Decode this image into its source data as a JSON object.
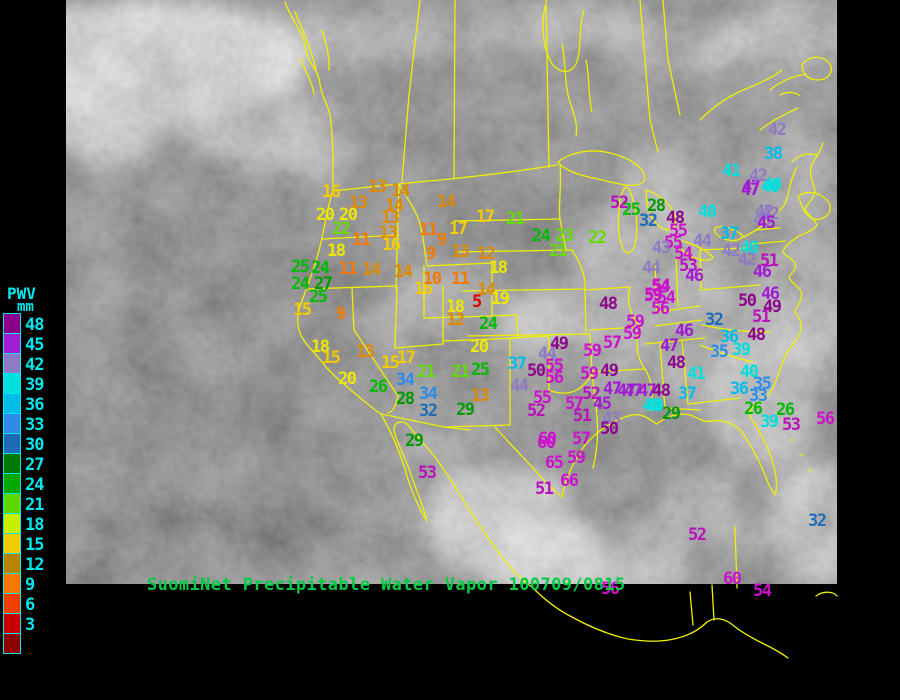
{
  "title": {
    "text": "SuomiNet Precipitable Water Vapor 100709/0815",
    "color": "#00CC44"
  },
  "legend": {
    "title": "PWV",
    "unit": "mm",
    "label_color": "#00E8ED",
    "ticks": [
      48,
      45,
      42,
      39,
      36,
      33,
      30,
      27,
      24,
      21,
      18,
      15,
      12,
      9,
      6,
      3
    ],
    "swatch_colors": [
      "#8B008B",
      "#A21CD5",
      "#8F7BC5",
      "#00E0E0",
      "#00BCE8",
      "#2E8BE8",
      "#1E6CB8",
      "#007A00",
      "#00A800",
      "#5FD800",
      "#C8EE00",
      "#F0CC00",
      "#B88400",
      "#F57800",
      "#F04000",
      "#C80000",
      "#8B0000"
    ]
  },
  "colors": {
    "border_yellow": "#F0F000",
    "background": "#000000",
    "ocean_gray": "#6E6E6E"
  },
  "value_colors": [
    {
      "min": 54,
      "color": "#CD12CD"
    },
    {
      "min": 51,
      "color": "#BB10BB"
    },
    {
      "min": 48,
      "color": "#8E068E"
    },
    {
      "min": 45,
      "color": "#A21CD5"
    },
    {
      "min": 42,
      "color": "#8F7BC5"
    },
    {
      "min": 39,
      "color": "#00DFDF"
    },
    {
      "min": 36,
      "color": "#00BCE8"
    },
    {
      "min": 33,
      "color": "#2E8BE8"
    },
    {
      "min": 30,
      "color": "#1E6CB8"
    },
    {
      "min": 27,
      "color": "#009900"
    },
    {
      "min": 24,
      "color": "#00BB00"
    },
    {
      "min": 21,
      "color": "#62DC00"
    },
    {
      "min": 18,
      "color": "#EDE800"
    },
    {
      "min": 15,
      "color": "#F2CC00"
    },
    {
      "min": 12,
      "color": "#DD8A00"
    },
    {
      "min": 9,
      "color": "#F57800"
    },
    {
      "min": 6,
      "color": "#F04000"
    },
    {
      "min": 0,
      "color": "#E00000"
    }
  ],
  "stations": [
    [
      16,
      322,
      185
    ],
    [
      13,
      368,
      180
    ],
    [
      14,
      391,
      184
    ],
    [
      13,
      349,
      196
    ],
    [
      14,
      385,
      199
    ],
    [
      13,
      381,
      211
    ],
    [
      20,
      316,
      208
    ],
    [
      20,
      339,
      208
    ],
    [
      22,
      332,
      222
    ],
    [
      18,
      327,
      244
    ],
    [
      11,
      352,
      233
    ],
    [
      13,
      379,
      226
    ],
    [
      16,
      382,
      238
    ],
    [
      25,
      291,
      260
    ],
    [
      24,
      311,
      261
    ],
    [
      11,
      339,
      262
    ],
    [
      14,
      362,
      263
    ],
    [
      14,
      394,
      265
    ],
    [
      24,
      291,
      277
    ],
    [
      27,
      314,
      277
    ],
    [
      25,
      309,
      290
    ],
    [
      15,
      293,
      303
    ],
    [
      9,
      336,
      307
    ],
    [
      18,
      311,
      340
    ],
    [
      15,
      322,
      351
    ],
    [
      13,
      356,
      345
    ],
    [
      20,
      338,
      372
    ],
    [
      15,
      381,
      356
    ],
    [
      17,
      397,
      351
    ],
    [
      26,
      369,
      380
    ],
    [
      34,
      396,
      373
    ],
    [
      21,
      417,
      365
    ],
    [
      28,
      396,
      392
    ],
    [
      34,
      419,
      387
    ],
    [
      32,
      419,
      404
    ],
    [
      21,
      451,
      365
    ],
    [
      25,
      471,
      363
    ],
    [
      13,
      471,
      389
    ],
    [
      29,
      456,
      403
    ],
    [
      20,
      470,
      340
    ],
    [
      14,
      437,
      195
    ],
    [
      17,
      476,
      210
    ],
    [
      21,
      506,
      212
    ],
    [
      11,
      419,
      223
    ],
    [
      17,
      449,
      222
    ],
    [
      9,
      437,
      233
    ],
    [
      9,
      426,
      247
    ],
    [
      13,
      451,
      245
    ],
    [
      12,
      477,
      247
    ],
    [
      18,
      489,
      261
    ],
    [
      16,
      414,
      282
    ],
    [
      10,
      423,
      272
    ],
    [
      11,
      451,
      272
    ],
    [
      14,
      477,
      283
    ],
    [
      5,
      472,
      295
    ],
    [
      19,
      491,
      292
    ],
    [
      18,
      446,
      300
    ],
    [
      12,
      446,
      313
    ],
    [
      24,
      479,
      317
    ],
    [
      24,
      532,
      229
    ],
    [
      23,
      555,
      229
    ],
    [
      22,
      588,
      231
    ],
    [
      21,
      549,
      244
    ],
    [
      37,
      508,
      357
    ],
    [
      44,
      538,
      347
    ],
    [
      50,
      527,
      364
    ],
    [
      55,
      545,
      359
    ],
    [
      56,
      545,
      371
    ],
    [
      49,
      550,
      337
    ],
    [
      44,
      510,
      379
    ],
    [
      59,
      583,
      344
    ],
    [
      59,
      580,
      367
    ],
    [
      49,
      600,
      364
    ],
    [
      57,
      603,
      336
    ],
    [
      55,
      533,
      391
    ],
    [
      52,
      527,
      404
    ],
    [
      52,
      582,
      387
    ],
    [
      57,
      565,
      397
    ],
    [
      51,
      573,
      409
    ],
    [
      47,
      603,
      382
    ],
    [
      45,
      593,
      397
    ],
    [
      47,
      617,
      384
    ],
    [
      47,
      638,
      384
    ],
    [
      48,
      652,
      384
    ],
    [
      43,
      602,
      412
    ],
    [
      50,
      600,
      422
    ],
    [
      40,
      642,
      399
    ],
    [
      48,
      667,
      356
    ],
    [
      47,
      660,
      339
    ],
    [
      60,
      538,
      432
    ],
    [
      57,
      572,
      432
    ],
    [
      59,
      567,
      451
    ],
    [
      65,
      545,
      456
    ],
    [
      66,
      560,
      474
    ],
    [
      51,
      535,
      482
    ],
    [
      25,
      622,
      203
    ],
    [
      28,
      647,
      199
    ],
    [
      52,
      610,
      196
    ],
    [
      32,
      639,
      214
    ],
    [
      48,
      666,
      211
    ],
    [
      55,
      669,
      224
    ],
    [
      55,
      664,
      236
    ],
    [
      43,
      652,
      241
    ],
    [
      54,
      674,
      247
    ],
    [
      53,
      679,
      259
    ],
    [
      46,
      685,
      269
    ],
    [
      44,
      642,
      261
    ],
    [
      54,
      652,
      279
    ],
    [
      59,
      644,
      289
    ],
    [
      56,
      651,
      302
    ],
    [
      48,
      599,
      297
    ],
    [
      59,
      626,
      315
    ],
    [
      59,
      623,
      327
    ],
    [
      40,
      698,
      205
    ],
    [
      37,
      720,
      227
    ],
    [
      44,
      693,
      234
    ],
    [
      42,
      722,
      244
    ],
    [
      40,
      740,
      241
    ],
    [
      42,
      738,
      253
    ],
    [
      42,
      755,
      205
    ],
    [
      43,
      753,
      213
    ],
    [
      47,
      742,
      180
    ],
    [
      40,
      761,
      180
    ],
    [
      51,
      760,
      254
    ],
    [
      46,
      753,
      265
    ],
    [
      46,
      761,
      287
    ],
    [
      49,
      763,
      300
    ],
    [
      51,
      752,
      310
    ],
    [
      50,
      738,
      294
    ],
    [
      42,
      768,
      123
    ],
    [
      38,
      764,
      147
    ],
    [
      41,
      722,
      164
    ],
    [
      42,
      749,
      169
    ],
    [
      47,
      741,
      183
    ],
    [
      40,
      763,
      178
    ],
    [
      42,
      761,
      207
    ],
    [
      45,
      757,
      216
    ],
    [
      54,
      651,
      280
    ],
    [
      59,
      644,
      288
    ],
    [
      54,
      657,
      291
    ],
    [
      46,
      675,
      324
    ],
    [
      41,
      687,
      367
    ],
    [
      47,
      624,
      384
    ],
    [
      37,
      678,
      387
    ],
    [
      40,
      645,
      399
    ],
    [
      29,
      662,
      407
    ],
    [
      32,
      705,
      313
    ],
    [
      36,
      720,
      330
    ],
    [
      48,
      747,
      328
    ],
    [
      35,
      710,
      345
    ],
    [
      39,
      732,
      343
    ],
    [
      40,
      740,
      365
    ],
    [
      36,
      730,
      382
    ],
    [
      35,
      753,
      377
    ],
    [
      33,
      749,
      389
    ],
    [
      26,
      744,
      402
    ],
    [
      26,
      776,
      403
    ],
    [
      39,
      760,
      415
    ],
    [
      53,
      782,
      418
    ],
    [
      56,
      816,
      412
    ],
    [
      32,
      808,
      514
    ],
    [
      52,
      688,
      528
    ],
    [
      60,
      723,
      572
    ],
    [
      54,
      753,
      584
    ],
    [
      29,
      405,
      434
    ],
    [
      53,
      418,
      466
    ],
    [
      60,
      537,
      436
    ],
    [
      56,
      601,
      582
    ]
  ]
}
